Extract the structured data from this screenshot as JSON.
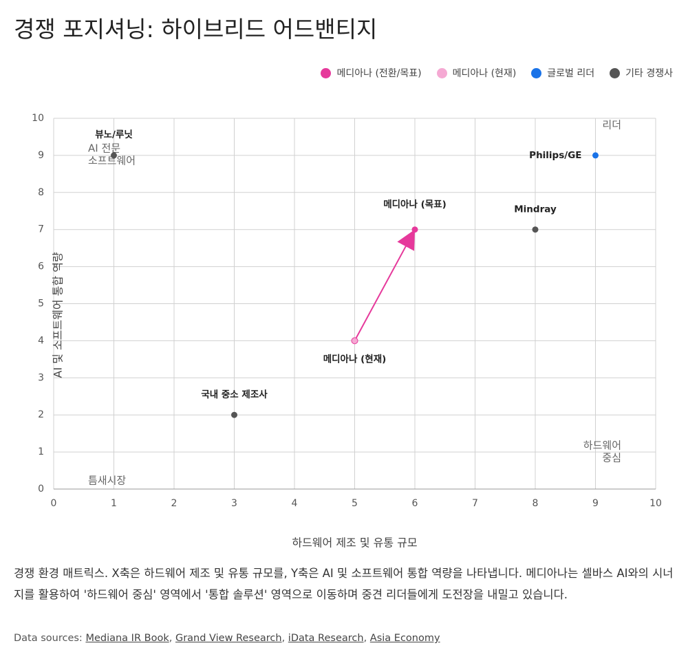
{
  "chart_data": {
    "type": "scatter",
    "title": "경쟁 포지셔닝: 하이브리드 어드밴티지",
    "x_label": "하드웨어 제조 및 유통 규모",
    "y_label": "AI 및 소프트웨어 통합 역량",
    "xlim": [
      0,
      10
    ],
    "ylim": [
      0,
      10
    ],
    "xticks": [
      0,
      1,
      2,
      3,
      4,
      5,
      6,
      7,
      8,
      9,
      10
    ],
    "yticks": [
      0,
      1,
      2,
      3,
      4,
      5,
      6,
      7,
      8,
      9,
      10
    ],
    "grid": true,
    "legend": "top-right",
    "series": [
      {
        "name": "메디아나 (전환/목표)",
        "color": "#e6399b",
        "x": [
          6
        ],
        "values": [
          7
        ],
        "labels": [
          "메디아나 (목표)"
        ]
      },
      {
        "name": "메디아나 (현재)",
        "color": "#f5a9d3",
        "x": [
          5
        ],
        "values": [
          4
        ],
        "labels": [
          "메디아나 (현재)"
        ]
      },
      {
        "name": "글로벌 리더",
        "color": "#1a73e8",
        "x": [
          9
        ],
        "values": [
          9
        ],
        "labels": [
          "Philips/GE"
        ]
      },
      {
        "name": "기타 경쟁사",
        "color": "#555555",
        "x": [
          8,
          3,
          1
        ],
        "values": [
          7,
          2,
          9
        ],
        "labels": [
          "Mindray",
          "국내 중소 제조사",
          "뷰노/루닛"
        ]
      }
    ],
    "annotations": [
      {
        "lines": [
          "리더"
        ]
      },
      {
        "lines": [
          "AI 전문",
          "소프트웨어"
        ]
      },
      {
        "lines": [
          "틈새시장"
        ]
      },
      {
        "lines": [
          "하드웨어",
          "중심"
        ]
      }
    ]
  },
  "description": "경쟁 환경 매트릭스. X축은 하드웨어 제조 및 유통 규모를, Y축은 AI 및 소프트웨어 통합 역량을 나타냅니다. 메디아나는 셀바스 AI와의 시너지를 활용하여 '하드웨어 중심' 영역에서 '통합 솔루션' 영역으로 이동하며 중견 리더들에게 도전장을 내밀고 있습니다.",
  "sources": {
    "label": "Data sources:",
    "links": [
      "Mediana IR Book",
      "Grand View Research",
      "iData Research",
      "Asia Economy"
    ]
  }
}
